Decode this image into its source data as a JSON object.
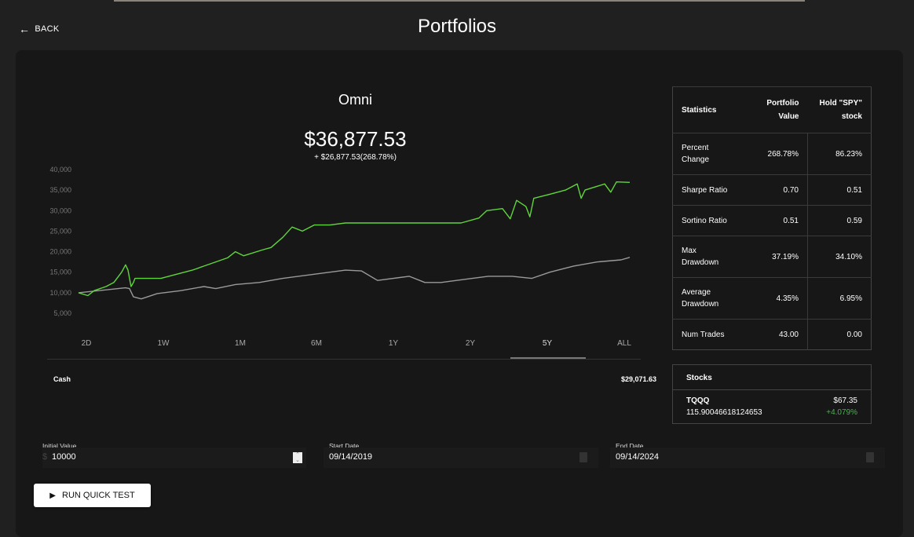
{
  "header": {
    "back_label": "BACK",
    "title": "Portfolios"
  },
  "portfolio": {
    "name": "Omni",
    "value": "$36,877.53",
    "change": "+ $26,877.53(268.78%)"
  },
  "timeframes": {
    "items": [
      "2D",
      "1W",
      "1M",
      "6M",
      "1Y",
      "2Y",
      "5Y",
      "ALL"
    ],
    "selected": "5Y"
  },
  "chart_data": {
    "type": "line",
    "ylim": [
      5000,
      40000
    ],
    "yticks": [
      "5,000",
      "10,000",
      "15,000",
      "20,000",
      "25,000",
      "30,000",
      "35,000",
      "40,000"
    ],
    "ytick_values": [
      5000,
      10000,
      15000,
      20000,
      25000,
      30000,
      35000,
      40000
    ],
    "xlim": [
      "2019-09-14",
      "2024-09-14"
    ],
    "grid": false,
    "series": [
      {
        "color": "#5fd63a",
        "points": [
          [
            "2019-09-14",
            10000
          ],
          [
            "2019-10-15",
            9300
          ],
          [
            "2019-11-05",
            10500
          ],
          [
            "2019-12-14",
            11500
          ],
          [
            "2020-01-09",
            12500
          ],
          [
            "2020-02-04",
            15000
          ],
          [
            "2020-02-17",
            16800
          ],
          [
            "2020-02-25",
            15500
          ],
          [
            "2020-03-06",
            11500
          ],
          [
            "2020-03-14",
            12500
          ],
          [
            "2020-03-19",
            13500
          ],
          [
            "2020-06-13",
            13500
          ],
          [
            "2020-08-04",
            14500
          ],
          [
            "2020-09-25",
            15500
          ],
          [
            "2020-11-03",
            16500
          ],
          [
            "2020-12-12",
            17500
          ],
          [
            "2021-01-20",
            18500
          ],
          [
            "2021-02-15",
            20000
          ],
          [
            "2021-03-14",
            19000
          ],
          [
            "2021-05-18",
            20500
          ],
          [
            "2021-06-13",
            21000
          ],
          [
            "2021-07-22",
            23500
          ],
          [
            "2021-08-22",
            26000
          ],
          [
            "2021-09-25",
            25000
          ],
          [
            "2021-11-03",
            26500
          ],
          [
            "2021-12-25",
            26500
          ],
          [
            "2022-02-15",
            27000
          ],
          [
            "2023-03-05",
            27000
          ],
          [
            "2023-05-03",
            28200
          ],
          [
            "2023-05-29",
            30000
          ],
          [
            "2023-07-20",
            30500
          ],
          [
            "2023-08-15",
            28000
          ],
          [
            "2023-09-05",
            32500
          ],
          [
            "2023-10-06",
            31000
          ],
          [
            "2023-10-19",
            28500
          ],
          [
            "2023-11-01",
            33000
          ],
          [
            "2023-12-24",
            34000
          ],
          [
            "2024-02-14",
            35000
          ],
          [
            "2024-03-24",
            36500
          ],
          [
            "2024-04-06",
            33000
          ],
          [
            "2024-04-19",
            35000
          ],
          [
            "2024-06-23",
            36500
          ],
          [
            "2024-07-13",
            34500
          ],
          [
            "2024-08-01",
            37000
          ],
          [
            "2024-09-14",
            36877.53
          ]
        ]
      },
      {
        "color": "#9a9a9a",
        "points": [
          [
            "2019-09-14",
            10000
          ],
          [
            "2020-02-17",
            11200
          ],
          [
            "2020-03-01",
            11000
          ],
          [
            "2020-03-14",
            9000
          ],
          [
            "2020-04-09",
            8500
          ],
          [
            "2020-06-01",
            9800
          ],
          [
            "2020-08-18",
            10500
          ],
          [
            "2020-11-03",
            11500
          ],
          [
            "2020-12-12",
            11000
          ],
          [
            "2021-02-15",
            12000
          ],
          [
            "2021-05-05",
            12500
          ],
          [
            "2021-07-22",
            13500
          ],
          [
            "2021-11-03",
            14500
          ],
          [
            "2022-02-15",
            15500
          ],
          [
            "2022-04-09",
            15300
          ],
          [
            "2022-06-01",
            13000
          ],
          [
            "2022-09-14",
            14000
          ],
          [
            "2022-11-05",
            12500
          ],
          [
            "2022-12-28",
            12500
          ],
          [
            "2023-04-11",
            13500
          ],
          [
            "2023-06-03",
            14000
          ],
          [
            "2023-08-21",
            14000
          ],
          [
            "2023-10-25",
            13500
          ],
          [
            "2023-12-24",
            15000
          ],
          [
            "2024-03-12",
            16500
          ],
          [
            "2024-05-30",
            17500
          ],
          [
            "2024-08-16",
            18000
          ],
          [
            "2024-09-14",
            18623
          ]
        ]
      }
    ]
  },
  "cash": {
    "label": "Cash",
    "value": "$29,071.63"
  },
  "stats": {
    "headers": [
      "Statistics",
      "Portfolio Value",
      "Hold \"SPY\" stock"
    ],
    "rows": [
      {
        "label": "Percent Change",
        "portfolio": "268.78%",
        "spy": "86.23%"
      },
      {
        "label": "Sharpe Ratio",
        "portfolio": "0.70",
        "spy": "0.51"
      },
      {
        "label": "Sortino Ratio",
        "portfolio": "0.51",
        "spy": "0.59"
      },
      {
        "label": "Max Drawdown",
        "portfolio": "37.19%",
        "spy": "34.10%"
      },
      {
        "label": "Average Drawdown",
        "portfolio": "4.35%",
        "spy": "6.95%"
      },
      {
        "label": "Num Trades",
        "portfolio": "43.00",
        "spy": "0.00"
      }
    ]
  },
  "stocks": {
    "title": "Stocks",
    "items": [
      {
        "ticker": "TQQQ",
        "shares": "115.90046618124653",
        "price": "$67.35",
        "change": "+4.079%",
        "change_color": "#4caf50"
      }
    ]
  },
  "form": {
    "initial_value": {
      "label": "Initial Value",
      "prefix": "$",
      "value": "10000"
    },
    "start_date": {
      "label": "Start Date",
      "value": "09/14/2019"
    },
    "end_date": {
      "label": "End Date",
      "value": "09/14/2024"
    },
    "run_button": "RUN QUICK TEST"
  }
}
